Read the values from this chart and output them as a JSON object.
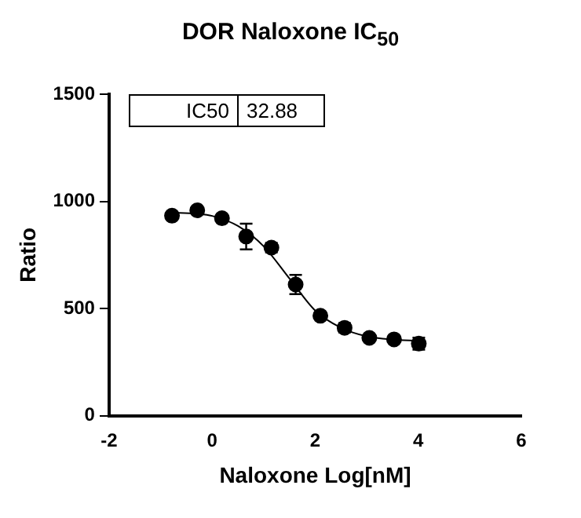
{
  "chart_data": {
    "type": "scatter",
    "title": "DOR Naloxone IC$_{50}$",
    "xlabel": "Naloxone Log[nM]",
    "ylabel": "Ratio",
    "xlim": [
      -2,
      6
    ],
    "xticks": [
      -2,
      0,
      2,
      4,
      6
    ],
    "ylim": [
      0,
      1500
    ],
    "yticks": [
      0,
      500,
      1000,
      1500
    ],
    "grid": false,
    "legend": false,
    "marker": "circle",
    "annotations": [
      "IC50",
      "32.88"
    ],
    "series": [
      {
        "type": "scatter",
        "color": "#000000",
        "x": [
          -0.78,
          -0.29,
          0.19,
          0.66,
          1.15,
          1.62,
          2.1,
          2.57,
          3.05,
          3.53,
          4.01
        ],
        "values": [
          933,
          958,
          921,
          836,
          784,
          612,
          466,
          410,
          363,
          356,
          336
        ],
        "errors": [
          null,
          null,
          null,
          60,
          22,
          45,
          null,
          22,
          null,
          null,
          28
        ]
      },
      {
        "type": "line",
        "color": "#000000",
        "marker": "none",
        "x": [
          -0.8,
          -0.3,
          0,
          0.5,
          1.0,
          1.5,
          2.0,
          2.5,
          3.0,
          3.5,
          4.0
        ],
        "values": [
          948,
          942,
          932,
          885,
          790,
          640,
          490,
          410,
          370,
          355,
          350
        ]
      }
    ]
  }
}
